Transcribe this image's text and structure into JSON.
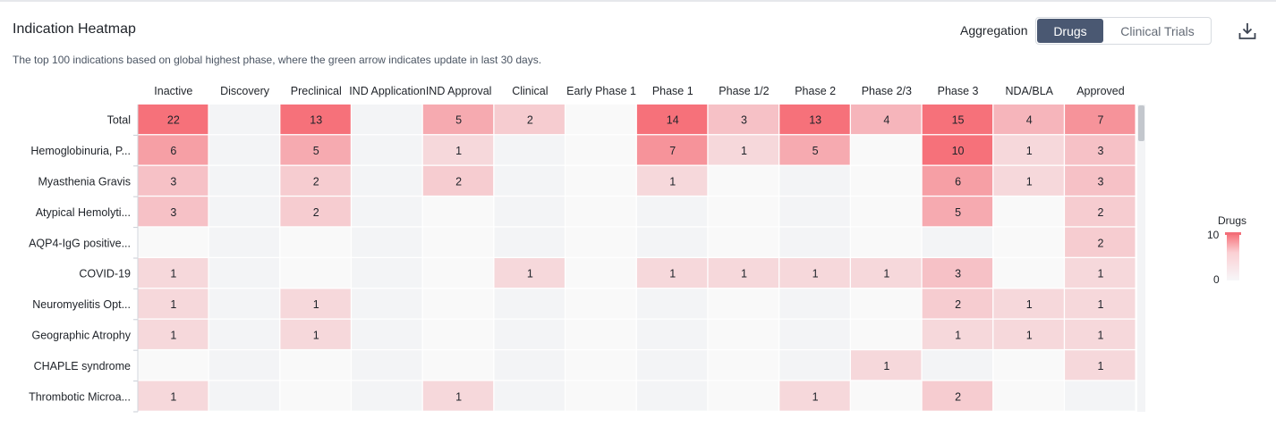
{
  "header": {
    "title": "Indication Heatmap",
    "subtitle": "The top 100 indications based on global highest phase, where the green arrow indicates update in last 30 days.",
    "aggregation_label": "Aggregation",
    "toggle_options": [
      "Drugs",
      "Clinical Trials"
    ],
    "toggle_selected": "Drugs",
    "download_icon": "download-icon"
  },
  "legend": {
    "title": "Drugs",
    "max_label": "10",
    "min_label": "0"
  },
  "colors": {
    "max": "#f6717a",
    "min": "#f7f7f9",
    "selected_toggle": "#4a5872"
  },
  "chart_data": {
    "type": "heatmap",
    "x_categories": [
      "Inactive",
      "Discovery",
      "Preclinical",
      "IND Application",
      "IND Approval",
      "Clinical",
      "Early Phase 1",
      "Phase 1",
      "Phase 1/2",
      "Phase 2",
      "Phase 2/3",
      "Phase 3",
      "NDA/BLA",
      "Approved"
    ],
    "y_categories": [
      "Total",
      "Hemoglobinuria, P...",
      "Myasthenia Gravis",
      "Atypical Hemolyti...",
      "AQP4-IgG positive...",
      "COVID-19",
      "Neuromyelitis Opt...",
      "Geographic Atrophy",
      "CHAPLE syndrome",
      "Thrombotic Microa..."
    ],
    "values": [
      [
        22,
        null,
        13,
        null,
        5,
        2,
        null,
        14,
        3,
        13,
        4,
        15,
        4,
        7
      ],
      [
        6,
        null,
        5,
        null,
        1,
        null,
        null,
        7,
        1,
        5,
        null,
        10,
        1,
        3
      ],
      [
        3,
        null,
        2,
        null,
        2,
        null,
        null,
        1,
        null,
        null,
        null,
        6,
        1,
        3
      ],
      [
        3,
        null,
        2,
        null,
        null,
        null,
        null,
        null,
        null,
        null,
        null,
        5,
        null,
        2
      ],
      [
        null,
        null,
        null,
        null,
        null,
        null,
        null,
        null,
        null,
        null,
        null,
        null,
        null,
        2
      ],
      [
        1,
        null,
        null,
        null,
        null,
        1,
        null,
        1,
        1,
        1,
        1,
        3,
        null,
        1
      ],
      [
        1,
        null,
        1,
        null,
        null,
        null,
        null,
        null,
        null,
        null,
        null,
        2,
        1,
        1
      ],
      [
        1,
        null,
        1,
        null,
        null,
        null,
        null,
        null,
        null,
        null,
        null,
        1,
        1,
        1
      ],
      [
        null,
        null,
        null,
        null,
        null,
        null,
        null,
        null,
        null,
        null,
        1,
        null,
        null,
        1
      ],
      [
        1,
        null,
        null,
        null,
        1,
        null,
        null,
        null,
        null,
        1,
        null,
        2,
        null,
        null
      ]
    ],
    "color_range": [
      0,
      10
    ]
  }
}
